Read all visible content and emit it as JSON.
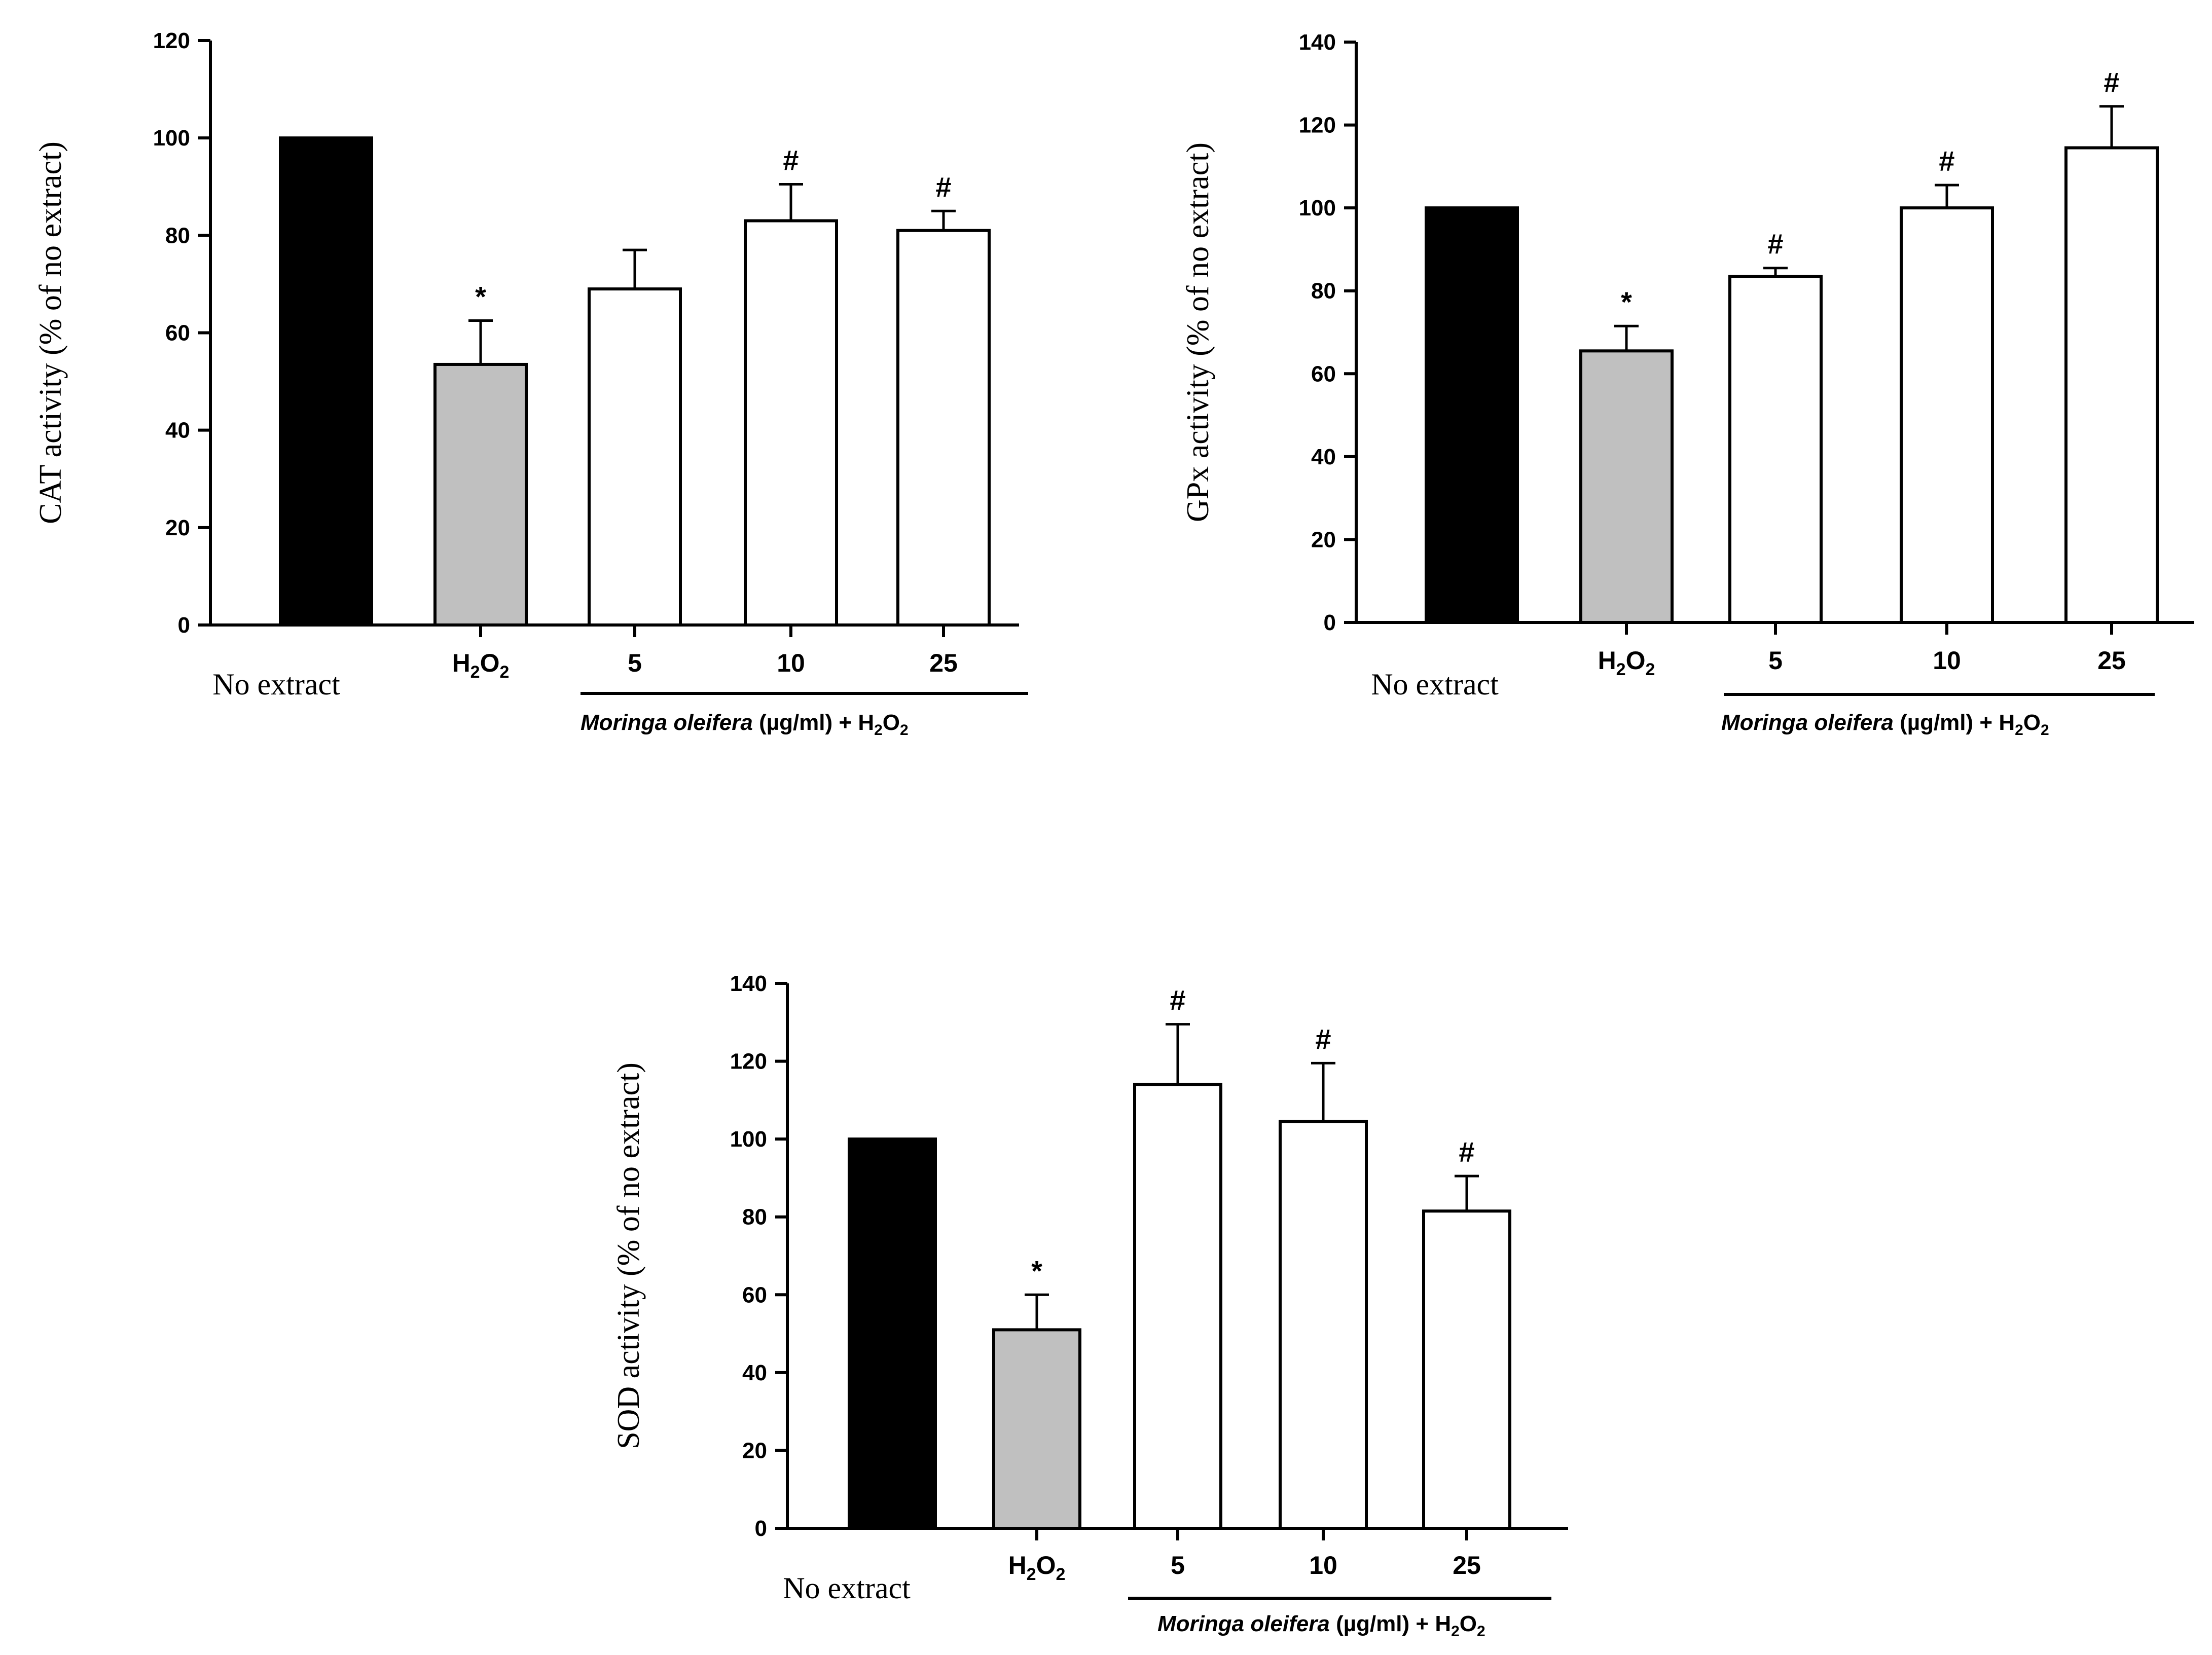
{
  "chart_data": [
    {
      "id": "cat",
      "type": "bar",
      "ylabel": "CAT activity (% of no extract)",
      "ylim": [
        0,
        120
      ],
      "yticks": [
        0,
        20,
        40,
        60,
        80,
        100,
        120
      ],
      "categories": [
        "No extract",
        "H2O2",
        "5",
        "10",
        "25"
      ],
      "values": [
        100,
        53.5,
        69,
        83,
        81
      ],
      "errors": [
        0,
        9,
        8,
        7.5,
        4
      ],
      "annotations": [
        "",
        "*",
        "",
        "#",
        "#"
      ],
      "group_label": {
        "italic": "Moringa oleifera",
        "rest": " (µg/ml) + H",
        "sub1": "2",
        "o": "O",
        "sub2": "2"
      }
    },
    {
      "id": "gpx",
      "type": "bar",
      "ylabel": "GPx activity (% of no extract)",
      "ylim": [
        0,
        140
      ],
      "yticks": [
        0,
        20,
        40,
        60,
        80,
        100,
        120,
        140
      ],
      "categories": [
        "No extract",
        "H2O2",
        "5",
        "10",
        "25"
      ],
      "values": [
        100,
        65.5,
        83.5,
        100,
        114.5
      ],
      "errors": [
        0,
        6,
        2,
        5.5,
        10
      ],
      "annotations": [
        "",
        "*",
        "#",
        "#",
        "#"
      ],
      "group_label": {
        "italic": "Moringa oleifera",
        "rest": " (µg/ml) + H",
        "sub1": "2",
        "o": "O",
        "sub2": "2"
      }
    },
    {
      "id": "sod",
      "type": "bar",
      "ylabel": "SOD activity (% of no extract)",
      "ylim": [
        0,
        140
      ],
      "yticks": [
        0,
        20,
        40,
        60,
        80,
        100,
        120,
        140
      ],
      "categories": [
        "No extract",
        "H2O2",
        "5",
        "10",
        "25"
      ],
      "values": [
        100,
        51,
        114,
        104.5,
        81.5
      ],
      "errors": [
        0,
        9,
        15.5,
        15,
        9
      ],
      "annotations": [
        "",
        "*",
        "#",
        "#",
        "#"
      ],
      "group_label": {
        "italic": "Moringa oleifera",
        "rest": " (µg/ml) + H",
        "sub1": "2",
        "o": "O",
        "sub2": "2"
      }
    }
  ],
  "colors": {
    "control": "#000000",
    "h2o2": "#c0c0c0",
    "extract": "#ffffff",
    "axis": "#000000"
  }
}
